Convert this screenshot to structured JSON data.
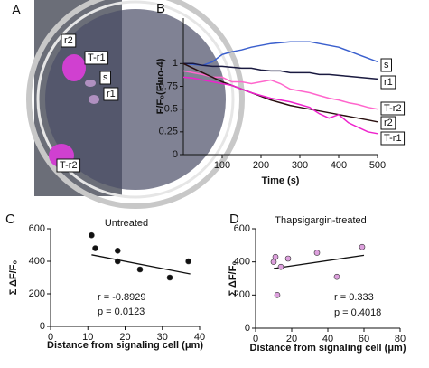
{
  "image_panel": {
    "panel_label": "A",
    "labels": [
      "r2",
      "T-r1",
      "s",
      "r1",
      "T-r2"
    ]
  },
  "chart_data": [
    {
      "type": "line",
      "panel_label": "B",
      "y_label": "F/F₀(Fluo-4)",
      "x_label": "Time (s)",
      "x": [
        0,
        25,
        50,
        75,
        100,
        125,
        150,
        175,
        200,
        225,
        250,
        275,
        300,
        325,
        350,
        375,
        400,
        425,
        450,
        475,
        500
      ],
      "xlim": [
        0,
        500
      ],
      "xticks": [
        100,
        200,
        300,
        400,
        500
      ],
      "ylim": [
        0,
        1.5
      ],
      "yticks": [
        0,
        0.25,
        0.5,
        0.75,
        1
      ],
      "series": [
        {
          "name": "s",
          "color": "#3a5fcd",
          "values": [
            1.0,
            0.99,
            0.98,
            1.02,
            1.1,
            1.13,
            1.15,
            1.18,
            1.2,
            1.22,
            1.23,
            1.24,
            1.24,
            1.24,
            1.22,
            1.2,
            1.18,
            1.14,
            1.1,
            1.06,
            1.02
          ]
        },
        {
          "name": "r1",
          "color": "#1a1a40",
          "values": [
            1.0,
            1.0,
            0.98,
            0.97,
            0.97,
            0.96,
            0.95,
            0.95,
            0.93,
            0.92,
            0.92,
            0.9,
            0.9,
            0.9,
            0.88,
            0.88,
            0.87,
            0.86,
            0.85,
            0.84,
            0.83
          ]
        },
        {
          "name": "T-r2",
          "color": "#ff66cc",
          "values": [
            0.92,
            0.9,
            0.88,
            0.85,
            0.85,
            0.8,
            0.8,
            0.78,
            0.8,
            0.82,
            0.78,
            0.72,
            0.7,
            0.68,
            0.65,
            0.62,
            0.6,
            0.57,
            0.55,
            0.52,
            0.5
          ]
        },
        {
          "name": "r2",
          "color": "#2a1010",
          "values": [
            1.0,
            0.95,
            0.9,
            0.85,
            0.8,
            0.76,
            0.72,
            0.68,
            0.64,
            0.6,
            0.57,
            0.54,
            0.52,
            0.5,
            0.48,
            0.46,
            0.44,
            0.42,
            0.4,
            0.38,
            0.36
          ]
        },
        {
          "name": "T-r1",
          "color": "#ee22cc",
          "values": [
            0.85,
            0.84,
            0.82,
            0.8,
            0.78,
            0.76,
            0.72,
            0.68,
            0.65,
            0.62,
            0.6,
            0.58,
            0.55,
            0.52,
            0.45,
            0.4,
            0.44,
            0.35,
            0.3,
            0.25,
            0.23
          ]
        }
      ]
    },
    {
      "type": "scatter",
      "panel_label": "C",
      "title": "Untreated",
      "y_label": "Σ ΔF/F₀",
      "x_label": "Distance from signaling cell (μm)",
      "x": [
        11,
        12,
        18,
        18,
        24,
        32,
        37
      ],
      "values": [
        560,
        480,
        465,
        400,
        350,
        300,
        400
      ],
      "color": "#111111",
      "fit_line": {
        "x": [
          11,
          37.5
        ],
        "y": [
          440,
          322
        ]
      },
      "annotations": [
        "r = -0.8929",
        "p = 0.0123"
      ],
      "xlim": [
        0,
        40
      ],
      "xticks": [
        0,
        10,
        20,
        30,
        40
      ],
      "ylim": [
        0,
        600
      ],
      "yticks": [
        0,
        200,
        400,
        600
      ]
    },
    {
      "type": "scatter",
      "panel_label": "D",
      "title": "Thapsigargin-treated",
      "y_label": "Σ ΔF/F₀",
      "x_label": "Distance from signaling cell (μm)",
      "x": [
        10,
        11,
        12,
        14,
        18,
        34,
        45,
        59
      ],
      "values": [
        400,
        430,
        200,
        370,
        420,
        455,
        310,
        490
      ],
      "color": "#dda0dd",
      "fit_line": {
        "x": [
          10,
          60
        ],
        "y": [
          360,
          440
        ]
      },
      "annotations": [
        "r = 0.333",
        "p = 0.4018"
      ],
      "xlim": [
        0,
        80
      ],
      "xticks": [
        0,
        20,
        40,
        60,
        80
      ],
      "ylim": [
        0,
        600
      ],
      "yticks": [
        0,
        200,
        400,
        600
      ]
    }
  ]
}
